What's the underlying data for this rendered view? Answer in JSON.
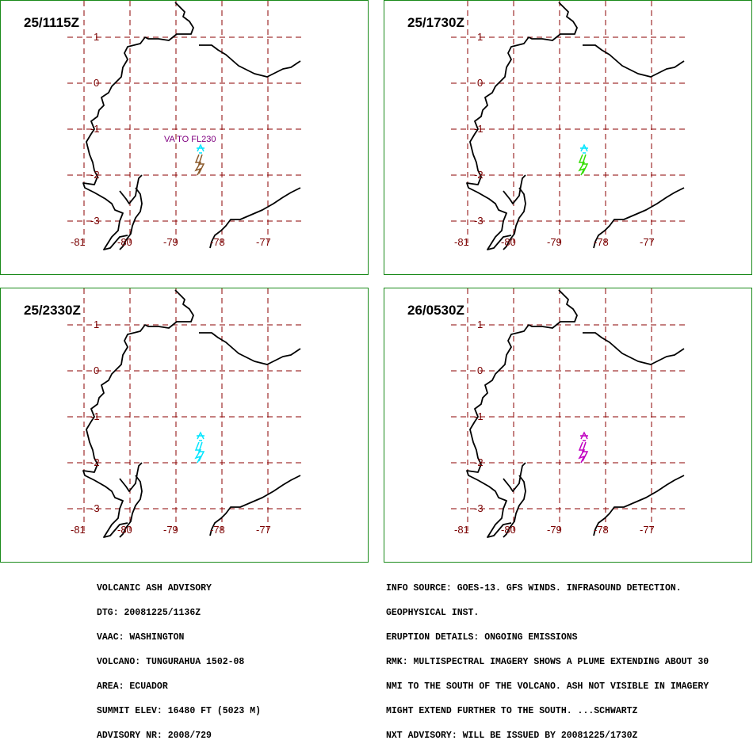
{
  "panels": [
    {
      "time": "25/1115Z",
      "plume_color": "#8b5a2b",
      "top_color": "#00e5ff",
      "note": "VA TO FL230"
    },
    {
      "time": "25/1730Z",
      "plume_color": "#33dd00",
      "top_color": "#00e5ff",
      "note": ""
    },
    {
      "time": "25/2330Z",
      "plume_color": "#00e5ff",
      "top_color": "#00e5ff",
      "note": ""
    },
    {
      "time": "26/0530Z",
      "plume_color": "#c000c0",
      "top_color": "#c000c0",
      "note": ""
    }
  ],
  "lat_labels": [
    "1",
    "0",
    "-1",
    "-2",
    "-3"
  ],
  "lon_labels": [
    "-81",
    "-80",
    "-79",
    "-78",
    "-77"
  ],
  "colors": {
    "grid": "#8b0000",
    "coast": "#000000",
    "frame": "#1a8a1a"
  },
  "advisory_left": [
    "VOLCANIC ASH ADVISORY",
    "DTG: 20081225/1136Z",
    "VAAC: WASHINGTON",
    "VOLCANO: TUNGURAHUA 1502-08",
    "AREA: ECUADOR",
    "SUMMIT ELEV: 16480 FT (5023 M)",
    "ADVISORY NR: 2008/729"
  ],
  "advisory_right": [
    "INFO SOURCE: GOES-13. GFS WINDS. INFRASOUND DETECTION.",
    "GEOPHYSICAL INST.",
    "ERUPTION DETAILS: ONGOING EMISSIONS",
    "RMK: MULTISPECTRAL IMAGERY SHOWS A PLUME EXTENDING ABOUT 30",
    "NMI TO THE SOUTH OF THE VOLCANO. ASH NOT VISIBLE IN IMAGERY",
    "MIGHT EXTEND FURTHER TO THE SOUTH. ...SCHWARTZ",
    "NXT ADVISORY: WILL BE ISSUED BY 20081225/1730Z"
  ]
}
